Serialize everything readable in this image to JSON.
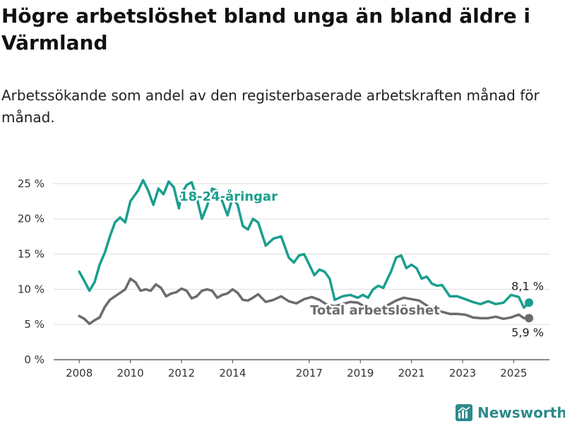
{
  "chart_data": {
    "type": "line",
    "title": "Högre arbetslöshet bland unga än bland äldre i Värmland",
    "subtitle": "Arbetssökande som andel av den registerbaserade arbetskraften månad för månad.",
    "ylim": [
      0,
      27
    ],
    "yticks": [
      0,
      5,
      10,
      15,
      20,
      25
    ],
    "ytick_labels": [
      "0 %",
      "5 %",
      "10 %",
      "15 %",
      "20 %",
      "25 %"
    ],
    "xlim": [
      2007.0,
      2026.4
    ],
    "xticks": [
      2008,
      2010,
      2012,
      2014,
      2017,
      2019,
      2021,
      2023,
      2025
    ],
    "xtick_labels": [
      "2008",
      "2010",
      "2012",
      "2014",
      "2017",
      "2019",
      "2021",
      "2023",
      "2025"
    ],
    "grid": true,
    "series": [
      {
        "name": "18-24-åringar",
        "color": "#1a9e8f",
        "end_label": "8,1 %",
        "x": [
          2008.0,
          2008.2,
          2008.4,
          2008.6,
          2008.8,
          2009.0,
          2009.2,
          2009.4,
          2009.6,
          2009.8,
          2010.0,
          2010.1,
          2010.3,
          2010.5,
          2010.7,
          2010.9,
          2011.1,
          2011.3,
          2011.5,
          2011.7,
          2011.9,
          2012.0,
          2012.2,
          2012.4,
          2012.6,
          2012.8,
          2013.0,
          2013.2,
          2013.4,
          2013.6,
          2013.8,
          2014.0,
          2014.2,
          2014.4,
          2014.6,
          2014.8,
          2015.0,
          2015.3,
          2015.6,
          2015.9,
          2016.2,
          2016.4,
          2016.6,
          2016.8,
          2017.0,
          2017.2,
          2017.4,
          2017.6,
          2017.8,
          2018.0,
          2018.3,
          2018.6,
          2018.9,
          2019.1,
          2019.3,
          2019.5,
          2019.7,
          2019.9,
          2020.0,
          2020.2,
          2020.4,
          2020.6,
          2020.8,
          2021.0,
          2021.2,
          2021.4,
          2021.6,
          2021.8,
          2022.0,
          2022.2,
          2022.5,
          2022.8,
          2023.1,
          2023.4,
          2023.7,
          2024.0,
          2024.3,
          2024.6,
          2024.9,
          2025.2,
          2025.4,
          2025.6
        ],
        "y": [
          12.5,
          11.2,
          9.8,
          11.0,
          13.5,
          15.2,
          17.5,
          19.5,
          20.2,
          19.5,
          22.5,
          23.0,
          24.0,
          25.5,
          24.0,
          22.0,
          24.3,
          23.5,
          25.3,
          24.5,
          21.5,
          23.5,
          24.8,
          25.2,
          23.0,
          20.0,
          21.8,
          24.3,
          24.0,
          22.5,
          20.5,
          23.0,
          22.0,
          19.0,
          18.5,
          20.0,
          19.5,
          16.2,
          17.2,
          17.5,
          14.5,
          13.8,
          14.8,
          15.0,
          13.5,
          12.0,
          12.8,
          12.5,
          11.5,
          8.5,
          9.0,
          9.2,
          8.8,
          9.2,
          8.8,
          10.0,
          10.5,
          10.2,
          11.0,
          12.5,
          14.5,
          14.8,
          13.0,
          13.5,
          13.0,
          11.5,
          11.8,
          10.8,
          10.5,
          10.6,
          9.0,
          9.0,
          8.6,
          8.2,
          7.9,
          8.3,
          7.9,
          8.1,
          9.2,
          8.9,
          7.4,
          8.1
        ]
      },
      {
        "name": "Total arbetslöshet",
        "color": "#6b6b70",
        "end_label": "5,9 %",
        "x": [
          2008.0,
          2008.2,
          2008.4,
          2008.6,
          2008.8,
          2009.0,
          2009.2,
          2009.4,
          2009.6,
          2009.8,
          2010.0,
          2010.2,
          2010.4,
          2010.6,
          2010.8,
          2011.0,
          2011.2,
          2011.4,
          2011.6,
          2011.8,
          2012.0,
          2012.2,
          2012.4,
          2012.6,
          2012.8,
          2013.0,
          2013.2,
          2013.4,
          2013.6,
          2013.8,
          2014.0,
          2014.2,
          2014.4,
          2014.6,
          2014.8,
          2015.0,
          2015.3,
          2015.6,
          2015.9,
          2016.2,
          2016.5,
          2016.8,
          2017.1,
          2017.4,
          2017.7,
          2018.0,
          2018.3,
          2018.6,
          2018.9,
          2019.2,
          2019.5,
          2019.8,
          2020.1,
          2020.4,
          2020.7,
          2021.0,
          2021.3,
          2021.6,
          2021.9,
          2022.2,
          2022.5,
          2022.8,
          2023.1,
          2023.4,
          2023.7,
          2024.0,
          2024.3,
          2024.6,
          2024.9,
          2025.2,
          2025.4,
          2025.6
        ],
        "y": [
          6.2,
          5.8,
          5.1,
          5.6,
          6.0,
          7.5,
          8.5,
          9.0,
          9.5,
          10.0,
          11.5,
          11.0,
          9.8,
          10.0,
          9.8,
          10.7,
          10.2,
          9.0,
          9.4,
          9.6,
          10.1,
          9.8,
          8.7,
          9.0,
          9.8,
          10.0,
          9.8,
          8.8,
          9.2,
          9.4,
          10.0,
          9.5,
          8.5,
          8.4,
          8.8,
          9.3,
          8.2,
          8.5,
          9.0,
          8.3,
          8.0,
          8.6,
          8.9,
          8.5,
          7.8,
          7.6,
          7.9,
          8.2,
          8.1,
          7.5,
          7.0,
          7.3,
          7.8,
          8.4,
          8.8,
          8.6,
          8.4,
          7.7,
          7.0,
          6.8,
          6.5,
          6.5,
          6.4,
          6.0,
          5.9,
          5.9,
          6.1,
          5.8,
          6.0,
          6.4,
          5.9,
          5.9
        ]
      }
    ]
  },
  "footer": {
    "logo_text": "Newsworthy",
    "logo_icon": "newsworthy-bar-chart-icon"
  }
}
